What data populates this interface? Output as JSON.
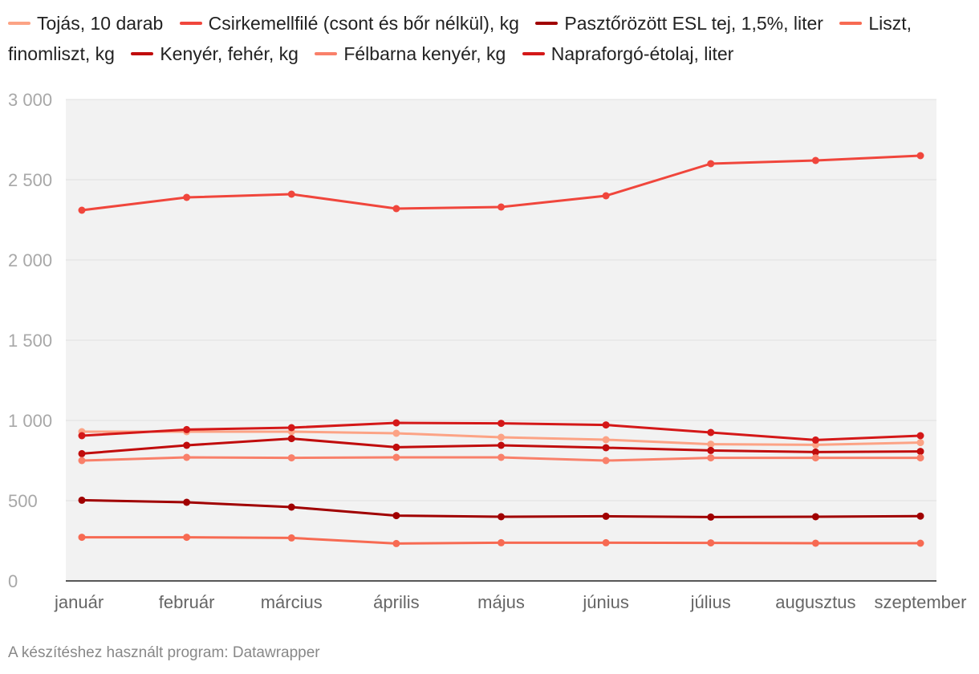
{
  "footer": {
    "credit": "A készítéshez használt program: Datawrapper"
  },
  "chart_data": {
    "type": "line",
    "title": "",
    "xlabel": "",
    "ylabel": "",
    "ylim": [
      0,
      3000
    ],
    "yticks": [
      {
        "value": 0,
        "label": "0"
      },
      {
        "value": 500,
        "label": "500"
      },
      {
        "value": 1000,
        "label": "1 000"
      },
      {
        "value": 1500,
        "label": "1 500"
      },
      {
        "value": 2000,
        "label": "2 000"
      },
      {
        "value": 2500,
        "label": "2 500"
      },
      {
        "value": 3000,
        "label": "3 000"
      }
    ],
    "grid": true,
    "legend_position": "top",
    "categories": [
      "január",
      "február",
      "március",
      "április",
      "május",
      "június",
      "július",
      "augusztus",
      "szeptember"
    ],
    "series": [
      {
        "name": "Tojás, 10 darab",
        "color": "#fca385",
        "values": [
          930,
          930,
          930,
          920,
          895,
          880,
          852,
          848,
          862
        ]
      },
      {
        "name": "Csirkemellfilé (csont és bőr nélkül), kg",
        "color": "#f0463c",
        "values": [
          2310,
          2390,
          2410,
          2320,
          2330,
          2400,
          2600,
          2620,
          2650
        ]
      },
      {
        "name": "Pasztőrözött ESL tej, 1,5%, liter",
        "color": "#a00000",
        "values": [
          503,
          490,
          460,
          407,
          400,
          403,
          398,
          400,
          404
        ]
      },
      {
        "name": "Liszt, finomliszt, kg",
        "color": "#f76a52",
        "values": [
          272,
          272,
          268,
          233,
          238,
          238,
          237,
          235,
          235
        ]
      },
      {
        "name": "Kenyér, fehér, kg",
        "color": "#c00c0c",
        "values": [
          793,
          845,
          887,
          833,
          845,
          830,
          813,
          803,
          807
        ]
      },
      {
        "name": "Félbarna kenyér, kg",
        "color": "#f9806a",
        "values": [
          750,
          770,
          767,
          770,
          770,
          750,
          767,
          767,
          767
        ]
      },
      {
        "name": "Napraforgó-étolaj, liter",
        "color": "#d41818",
        "values": [
          905,
          943,
          955,
          985,
          982,
          972,
          925,
          878,
          905
        ]
      }
    ]
  }
}
